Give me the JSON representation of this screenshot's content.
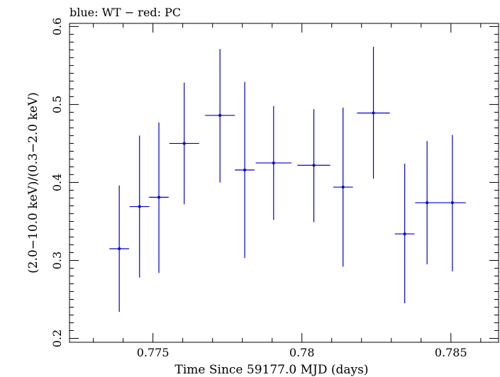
{
  "chart_data": {
    "type": "scatter",
    "title": "blue: WT − red: PC",
    "xlabel": "Time Since 59177.0 MJD (days)",
    "ylabel": "(2.0−10.0 keV)/(0.3−2.0 keV)",
    "xlim": [
      0.7722,
      0.7866
    ],
    "ylim": [
      0.195,
      0.604
    ],
    "xticks": [
      {
        "value": 0.775,
        "label": "0.775"
      },
      {
        "value": 0.78,
        "label": "0.78"
      },
      {
        "value": 0.785,
        "label": "0.785"
      }
    ],
    "yticks": [
      {
        "value": 0.2,
        "label": "0.2"
      },
      {
        "value": 0.3,
        "label": "0.3"
      },
      {
        "value": 0.4,
        "label": "0.4"
      },
      {
        "value": 0.5,
        "label": "0.5"
      },
      {
        "value": 0.6,
        "label": "0.6"
      }
    ],
    "grid": false,
    "series": [
      {
        "name": "WT",
        "color": "#0000cc",
        "points": [
          {
            "x": 0.77387,
            "xerr": 0.00033,
            "y": 0.315,
            "ylo": 0.234,
            "yhi": 0.396
          },
          {
            "x": 0.77455,
            "xerr": 0.00033,
            "y": 0.369,
            "ylo": 0.278,
            "yhi": 0.46
          },
          {
            "x": 0.7752,
            "xerr": 0.00033,
            "y": 0.381,
            "ylo": 0.284,
            "yhi": 0.477
          },
          {
            "x": 0.77605,
            "xerr": 0.0005,
            "y": 0.45,
            "ylo": 0.372,
            "yhi": 0.528
          },
          {
            "x": 0.77725,
            "xerr": 0.0005,
            "y": 0.486,
            "ylo": 0.4,
            "yhi": 0.571
          },
          {
            "x": 0.77808,
            "xerr": 0.00033,
            "y": 0.416,
            "ylo": 0.303,
            "yhi": 0.529
          },
          {
            "x": 0.77905,
            "xerr": 0.0006,
            "y": 0.425,
            "ylo": 0.352,
            "yhi": 0.498
          },
          {
            "x": 0.7804,
            "xerr": 0.00055,
            "y": 0.422,
            "ylo": 0.349,
            "yhi": 0.494
          },
          {
            "x": 0.78138,
            "xerr": 0.00033,
            "y": 0.394,
            "ylo": 0.292,
            "yhi": 0.496
          },
          {
            "x": 0.7824,
            "xerr": 0.00055,
            "y": 0.489,
            "ylo": 0.405,
            "yhi": 0.574
          },
          {
            "x": 0.78345,
            "xerr": 0.00033,
            "y": 0.334,
            "ylo": 0.245,
            "yhi": 0.424
          },
          {
            "x": 0.7842,
            "xerr": 0.0004,
            "y": 0.374,
            "ylo": 0.295,
            "yhi": 0.453
          },
          {
            "x": 0.78505,
            "xerr": 0.00045,
            "y": 0.374,
            "ylo": 0.286,
            "yhi": 0.461
          }
        ]
      }
    ]
  }
}
